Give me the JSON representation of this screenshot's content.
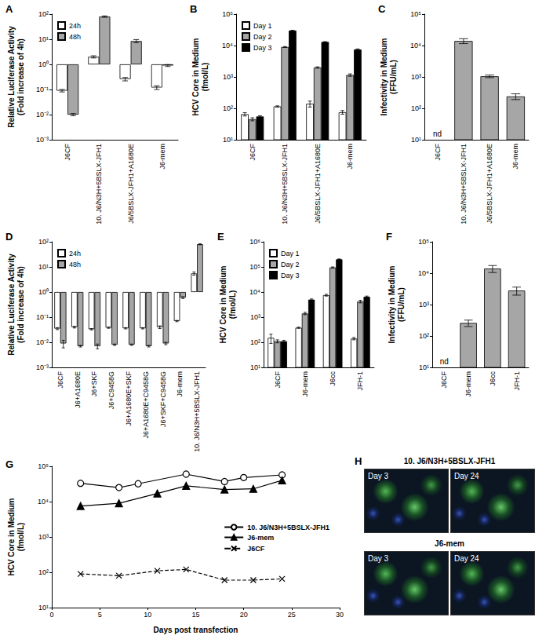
{
  "chart_data": [
    {
      "type": "bar",
      "title": "A",
      "ylabel": "Relative Luciferase Activity\n(Fold increase of 4h)",
      "categories": [
        "J6CF",
        "10. J6/N3H+5BSLX-JFH1",
        "J6/5BSLX-JFH1+A1680E",
        "J6-mem"
      ],
      "series": [
        {
          "name": "24h",
          "color": "#ffffff",
          "values": [
            0.09,
            2.0,
            0.26,
            0.12
          ],
          "errors": [
            0.01,
            0.2,
            0.04,
            0.02
          ]
        },
        {
          "name": "48h",
          "color": "#a6a6a6",
          "values": [
            0.01,
            80,
            8.5,
            0.9
          ],
          "errors": [
            0.001,
            5,
            1.2,
            0.08
          ]
        }
      ],
      "ylim": [
        0.001,
        100
      ],
      "yticks": [
        {
          "value": 0.001,
          "label": "10⁻³"
        },
        {
          "value": 0.01,
          "label": "10⁻²"
        },
        {
          "value": 0.1,
          "label": "10⁻¹"
        },
        {
          "value": 1,
          "label": "10⁰"
        },
        {
          "value": 10,
          "label": "10¹"
        },
        {
          "value": 100,
          "label": "10²"
        }
      ],
      "log": "y",
      "grid": false,
      "legend": "top-left"
    },
    {
      "type": "bar",
      "title": "B",
      "ylabel": "HCV Core in Medium\n(fmol/L)",
      "categories": [
        "J6CF",
        "10. J6/N3H+5BSLX-JFH1",
        "J6/5BSLX-JFH1+A1680E",
        "J6-mem"
      ],
      "series": [
        {
          "name": "Day 1",
          "color": "#ffffff",
          "values": [
            65,
            115,
            140,
            75
          ],
          "errors": [
            8,
            5,
            30,
            10
          ]
        },
        {
          "name": "Day 2",
          "color": "#a6a6a6",
          "values": [
            45,
            9000,
            2000,
            1150
          ],
          "errors": [
            5,
            300,
            100,
            100
          ]
        },
        {
          "name": "Day 3",
          "color": "#000000",
          "values": [
            55,
            30000,
            13000,
            7500
          ],
          "errors": [
            3,
            500,
            300,
            300
          ]
        }
      ],
      "ylim": [
        10,
        100000
      ],
      "yticks": [
        {
          "value": 10,
          "label": "10¹"
        },
        {
          "value": 100,
          "label": "10²"
        },
        {
          "value": 1000,
          "label": "10³"
        },
        {
          "value": 10000,
          "label": "10⁴"
        },
        {
          "value": 100000,
          "label": "10⁵"
        }
      ],
      "log": "y",
      "grid": false,
      "legend": "top-left"
    },
    {
      "type": "bar",
      "title": "C",
      "ylabel": "Infectivity in Medium\n(FFU/mL)",
      "categories": [
        "J6CF",
        "10. J6/N3H+5BSLX-JFH1",
        "J6/5BSLX-JFH1+A1680E",
        "J6-mem"
      ],
      "series": [
        {
          "name": "Infectivity",
          "color": "#a6a6a6",
          "values": [
            null,
            14000,
            1050,
            240
          ],
          "errors": [
            null,
            2500,
            100,
            50
          ]
        }
      ],
      "annotations": [
        {
          "x": "J6CF",
          "text": "nd"
        }
      ],
      "ylim": [
        10,
        100000
      ],
      "yticks": [
        {
          "value": 10,
          "label": "10¹"
        },
        {
          "value": 100,
          "label": "10²"
        },
        {
          "value": 1000,
          "label": "10³"
        },
        {
          "value": 10000,
          "label": "10⁴"
        },
        {
          "value": 100000,
          "label": "10⁵"
        }
      ],
      "log": "y",
      "grid": false
    },
    {
      "type": "bar",
      "title": "D",
      "ylabel": "Relative Luciferase Activity\n(Fold increase of 4h)",
      "categories": [
        "J6CF",
        "J6+A1680E",
        "J6+SKF",
        "J6+C9458G",
        "J6+A1680E+SKF",
        "J6+A1680E+C9458G",
        "J6+SKF+C9458G",
        "J6-mem",
        "10. J6/N3H+5BSLX-JFH1"
      ],
      "series": [
        {
          "name": "24h",
          "color": "#ffffff",
          "values": [
            0.035,
            0.04,
            0.033,
            0.038,
            0.036,
            0.036,
            0.04,
            0.07,
            5.5
          ],
          "errors": [
            0.003,
            0.003,
            0.002,
            0.002,
            0.002,
            0.002,
            0.005,
            0.004,
            0.8
          ]
        },
        {
          "name": "48h",
          "color": "#a6a6a6",
          "values": [
            0.009,
            0.007,
            0.007,
            0.008,
            0.008,
            0.007,
            0.009,
            0.6,
            80
          ],
          "errors": [
            0.003,
            0.0005,
            0.0015,
            0.0005,
            0.0005,
            0.0005,
            0.001,
            0.05,
            4
          ]
        }
      ],
      "ylim": [
        0.001,
        100
      ],
      "yticks": [
        {
          "value": 0.001,
          "label": "10⁻³"
        },
        {
          "value": 0.01,
          "label": "10⁻²"
        },
        {
          "value": 0.1,
          "label": "10⁻¹"
        },
        {
          "value": 1,
          "label": "10⁰"
        },
        {
          "value": 10,
          "label": "10¹"
        },
        {
          "value": 100,
          "label": "10²"
        }
      ],
      "log": "y",
      "grid": false,
      "legend": "top-left"
    },
    {
      "type": "bar",
      "title": "E",
      "ylabel": "HCV Core in Medium\n(fmol/L)",
      "categories": [
        "J6CF",
        "J6-mem",
        "J6cc",
        "JFH-1"
      ],
      "series": [
        {
          "name": "Day 1",
          "color": "#ffffff",
          "values": [
            150,
            380,
            7500,
            140
          ],
          "errors": [
            60,
            20,
            600,
            15
          ]
        },
        {
          "name": "Day 2",
          "color": "#a6a6a6",
          "values": [
            110,
            1400,
            95000,
            4200
          ],
          "errors": [
            15,
            150,
            5000,
            500
          ]
        },
        {
          "name": "Day 3",
          "color": "#000000",
          "values": [
            110,
            5000,
            200000,
            6500
          ],
          "errors": [
            10,
            300,
            8000,
            400
          ]
        }
      ],
      "ylim": [
        10,
        1000000
      ],
      "yticks": [
        {
          "value": 10,
          "label": "10¹"
        },
        {
          "value": 100,
          "label": "10²"
        },
        {
          "value": 1000,
          "label": "10³"
        },
        {
          "value": 10000,
          "label": "10⁴"
        },
        {
          "value": 100000,
          "label": "10⁵"
        },
        {
          "value": 1000000,
          "label": "10⁶"
        }
      ],
      "log": "y",
      "grid": false,
      "legend": "top-left"
    },
    {
      "type": "bar",
      "title": "F",
      "ylabel": "Infectivity in Medium\n(FFU/mL)",
      "categories": [
        "J6CF",
        "J6-mem",
        "J6cc",
        "JFH-1"
      ],
      "series": [
        {
          "name": "Infectivity",
          "color": "#a6a6a6",
          "values": [
            null,
            260,
            14000,
            2800
          ],
          "errors": [
            null,
            60,
            3500,
            800
          ]
        }
      ],
      "annotations": [
        {
          "x": "J6CF",
          "text": "nd"
        }
      ],
      "ylim": [
        10,
        100000
      ],
      "yticks": [
        {
          "value": 10,
          "label": "10¹"
        },
        {
          "value": 100,
          "label": "10²"
        },
        {
          "value": 1000,
          "label": "10³"
        },
        {
          "value": 10000,
          "label": "10⁴"
        },
        {
          "value": 100000,
          "label": "10⁵"
        }
      ],
      "log": "y",
      "grid": false
    },
    {
      "type": "line",
      "title": "G",
      "xlabel": "Days post transfection",
      "ylabel": "HCV Core in Medium\n(fmol/L)",
      "series": [
        {
          "name": "10. J6/N3H+5BSLX-JFH1",
          "color": "#000000",
          "marker": "open circle",
          "line_style": "solid",
          "x": [
            3,
            7,
            9,
            14,
            18,
            20,
            24
          ],
          "values": [
            33000,
            25000,
            32000,
            60000,
            37000,
            48000,
            57000
          ]
        },
        {
          "name": "J6-mem",
          "color": "#000000",
          "marker": "triangle",
          "line_style": "solid",
          "x": [
            3,
            7,
            11,
            14,
            18,
            21,
            24
          ],
          "values": [
            7500,
            9000,
            17000,
            28000,
            22000,
            23000,
            40000
          ]
        },
        {
          "name": "J6CF",
          "color": "#000000",
          "marker": "x",
          "line_style": "dashed",
          "x": [
            3,
            7,
            11,
            14,
            18,
            21,
            24
          ],
          "values": [
            90,
            80,
            110,
            120,
            60,
            60,
            65
          ]
        }
      ],
      "xlim": [
        0,
        30
      ],
      "xticks": [
        0,
        5,
        10,
        15,
        20,
        25,
        30
      ],
      "ylim": [
        10,
        100000
      ],
      "yticks": [
        {
          "value": 10,
          "label": "10¹"
        },
        {
          "value": 100,
          "label": "10²"
        },
        {
          "value": 1000,
          "label": "10³"
        },
        {
          "value": 10000,
          "label": "10⁴"
        },
        {
          "value": 100000,
          "label": "10⁵"
        }
      ],
      "log": "y",
      "grid": false,
      "legend": "right"
    }
  ],
  "micrographs": {
    "title": "H",
    "panels": [
      {
        "label": "10. J6/N3H+5BSLX-JFH1",
        "images": [
          "Day 3",
          "Day 24"
        ]
      },
      {
        "label": "J6-mem",
        "images": [
          "Day 3",
          "Day 24"
        ]
      }
    ]
  }
}
